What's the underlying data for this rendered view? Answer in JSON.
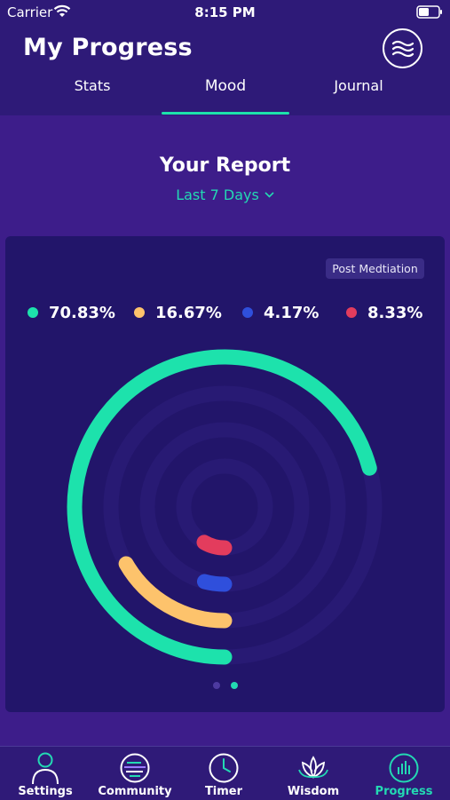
{
  "status_bar": {
    "carrier": "Carrier",
    "time": "8:15 PM"
  },
  "header": {
    "title": "My Progress",
    "action_icon": "waves-icon",
    "tabs": [
      {
        "label": "Stats",
        "active": false
      },
      {
        "label": "Mood",
        "active": true
      },
      {
        "label": "Journal",
        "active": false
      }
    ]
  },
  "report": {
    "title": "Your Report",
    "range": "Last 7 Days",
    "badge": "Post Medtiation",
    "page_indicator": {
      "count": 2,
      "active": 2
    }
  },
  "chart_data": {
    "type": "pie",
    "series": [
      {
        "value": 70.83,
        "label": "70.83%",
        "color": "#1de2ac"
      },
      {
        "value": 16.67,
        "label": "16.67%",
        "color": "#fdc36c"
      },
      {
        "value": 4.17,
        "label": "4.17%",
        "color": "#2f4fdc"
      },
      {
        "value": 8.33,
        "label": "8.33%",
        "color": "#e33c5d"
      }
    ]
  },
  "tabbar": {
    "items": [
      {
        "label": "Settings",
        "icon": "person-icon",
        "active": false
      },
      {
        "label": "Community",
        "icon": "globe-icon",
        "active": false
      },
      {
        "label": "Timer",
        "icon": "clock-icon",
        "active": false
      },
      {
        "label": "Wisdom",
        "icon": "lotus-icon",
        "active": false
      },
      {
        "label": "Progress",
        "icon": "bar-chart-icon",
        "active": true
      }
    ]
  },
  "colors": {
    "accent": "#23d9b3",
    "header_bg": "#2e1a78",
    "page_bg": "#3d1d8a",
    "card_bg": "#22156a"
  }
}
